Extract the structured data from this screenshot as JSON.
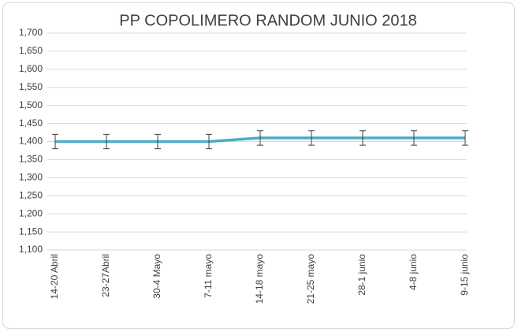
{
  "chart_data": {
    "type": "line",
    "title": "PP COPOLIMERO RANDOM  JUNIO 2018",
    "categories": [
      "14-20 Abril",
      "23-27Abril",
      "30-4 Mayo",
      "7-11 mayo",
      "14-18 mayo",
      "21-25 mayo",
      "28-1 junio",
      "4-8 junio",
      "9-15 junio"
    ],
    "series": [
      {
        "color": "#4bacc6",
        "values": [
          1400,
          1400,
          1400,
          1400,
          1410,
          1410,
          1410,
          1410,
          1410
        ],
        "errors": [
          20,
          20,
          20,
          20,
          20,
          20,
          20,
          20,
          20
        ]
      }
    ],
    "ylim": [
      1100,
      1700
    ],
    "yticks": [
      {
        "value": 1100,
        "label": "1,100"
      },
      {
        "value": 1150,
        "label": "1,150"
      },
      {
        "value": 1200,
        "label": "1,200"
      },
      {
        "value": 1250,
        "label": "1,250"
      },
      {
        "value": 1300,
        "label": "1,300"
      },
      {
        "value": 1350,
        "label": "1,350"
      },
      {
        "value": 1400,
        "label": "1,400"
      },
      {
        "value": 1450,
        "label": "1,450"
      },
      {
        "value": 1500,
        "label": "1,500"
      },
      {
        "value": 1550,
        "label": "1,550"
      },
      {
        "value": 1600,
        "label": "1,600"
      },
      {
        "value": 1650,
        "label": "1,650"
      },
      {
        "value": 1700,
        "label": "1,700"
      }
    ],
    "grid": true
  }
}
